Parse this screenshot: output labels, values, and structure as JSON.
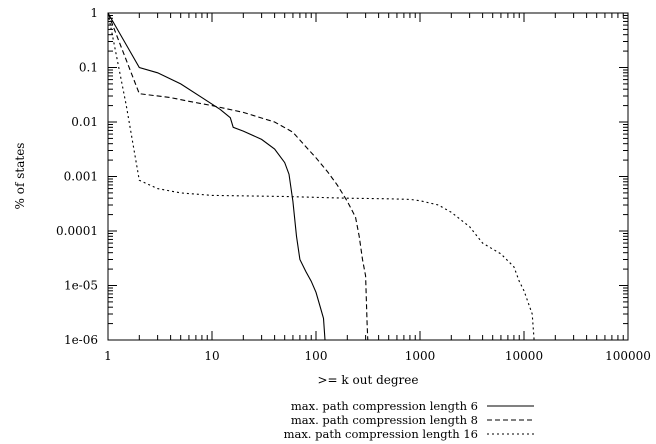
{
  "chart_data": {
    "type": "line",
    "xlabel": ">= k out degree",
    "ylabel": "% of states",
    "x_scale": "log",
    "y_scale": "log",
    "xlim": [
      1,
      100000
    ],
    "ylim": [
      1e-06,
      1
    ],
    "x_ticks": [
      1,
      10,
      100,
      1000,
      10000,
      100000
    ],
    "x_tick_labels": [
      "1",
      "10",
      "100",
      "1000",
      "10000",
      "100000"
    ],
    "y_ticks": [
      1,
      0.1,
      0.01,
      0.001,
      0.0001,
      1e-05,
      1e-06
    ],
    "y_tick_labels": [
      "1",
      "0.1",
      "0.01",
      "0.001",
      "0.0001",
      "1e-05",
      "1e-06"
    ],
    "grid": false,
    "legend_position": "bottom-center (below plot)",
    "series": [
      {
        "name": "max. path compression length 6",
        "line_style": "solid",
        "points": [
          [
            1,
            1
          ],
          [
            2,
            0.1
          ],
          [
            3,
            0.08
          ],
          [
            5,
            0.05
          ],
          [
            8,
            0.028
          ],
          [
            12,
            0.017
          ],
          [
            15,
            0.012
          ],
          [
            16,
            0.008
          ],
          [
            20,
            0.0068
          ],
          [
            30,
            0.0048
          ],
          [
            40,
            0.0032
          ],
          [
            50,
            0.0018
          ],
          [
            55,
            0.0011
          ],
          [
            60,
            0.00035
          ],
          [
            65,
            8e-05
          ],
          [
            70,
            3e-05
          ],
          [
            80,
            1.8e-05
          ],
          [
            90,
            1.2e-05
          ],
          [
            100,
            7.5e-06
          ],
          [
            110,
            4e-06
          ],
          [
            118,
            2.5e-06
          ],
          [
            122,
            1e-06
          ]
        ]
      },
      {
        "name": "max. path compression length 8",
        "line_style": "dashed",
        "points": [
          [
            1,
            1
          ],
          [
            2,
            0.033
          ],
          [
            4,
            0.028
          ],
          [
            6,
            0.024
          ],
          [
            10,
            0.02
          ],
          [
            20,
            0.015
          ],
          [
            40,
            0.01
          ],
          [
            60,
            0.0065
          ],
          [
            80,
            0.0035
          ],
          [
            100,
            0.0022
          ],
          [
            130,
            0.0012
          ],
          [
            160,
            0.0007
          ],
          [
            200,
            0.00035
          ],
          [
            240,
            0.00018
          ],
          [
            260,
            8e-05
          ],
          [
            280,
            3e-05
          ],
          [
            300,
            1.5e-05
          ],
          [
            310,
            2e-06
          ],
          [
            315,
            1e-06
          ]
        ]
      },
      {
        "name": "max. path compression length 16",
        "line_style": "dotted",
        "points": [
          [
            1,
            1
          ],
          [
            1.5,
            0.02
          ],
          [
            2,
            0.00085
          ],
          [
            3,
            0.0006
          ],
          [
            5,
            0.0005
          ],
          [
            10,
            0.00045
          ],
          [
            50,
            0.00043
          ],
          [
            200,
            0.0004
          ],
          [
            500,
            0.00039
          ],
          [
            800,
            0.00038
          ],
          [
            1000,
            0.00036
          ],
          [
            1500,
            0.0003
          ],
          [
            2000,
            0.00022
          ],
          [
            3000,
            0.00012
          ],
          [
            4000,
            6e-05
          ],
          [
            6000,
            3.8e-05
          ],
          [
            8000,
            2.2e-05
          ],
          [
            9000,
            1.2e-05
          ],
          [
            10000,
            8e-06
          ],
          [
            12000,
            3e-06
          ],
          [
            12500,
            1e-06
          ]
        ]
      }
    ]
  }
}
